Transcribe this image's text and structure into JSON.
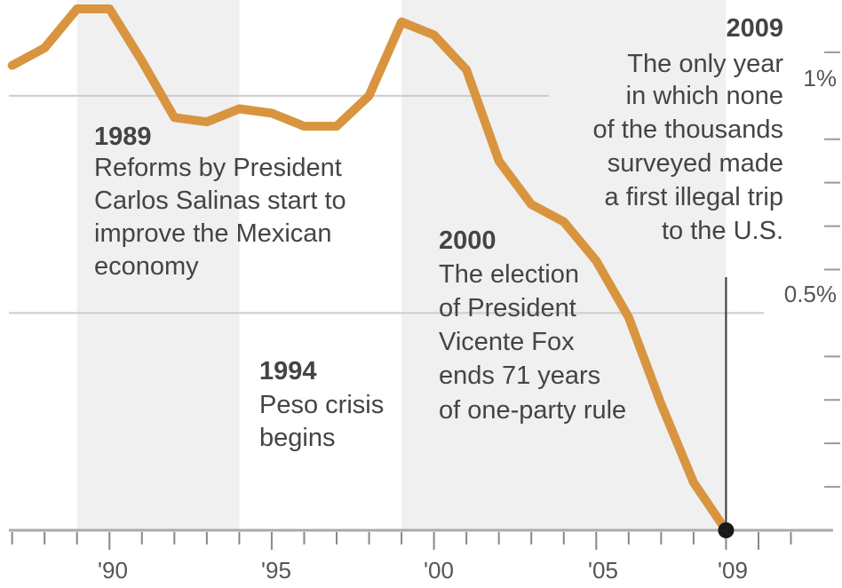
{
  "chart_data": {
    "type": "line",
    "x_tick_labels": [
      "'90",
      "'95",
      "'00",
      "'05",
      "'09"
    ],
    "y_tick_labels": [
      "1%",
      "0.5%"
    ],
    "ylim": [
      0,
      1.2
    ],
    "xlim": [
      1986.9,
      2012.3
    ],
    "grid": "horizontal",
    "line_color": "#d99440",
    "shading_color": "#f0f0f0",
    "shaded_periods": [
      [
        1989,
        1994
      ],
      [
        1999,
        2009
      ]
    ],
    "series": [
      {
        "x": [
          1987,
          1988,
          1989,
          1990,
          1991,
          1992,
          1993,
          1994,
          1995,
          1996,
          1997,
          1998,
          1999,
          2000,
          2001,
          2002,
          2003,
          2004,
          2005,
          2006,
          2007,
          2008,
          2009
        ],
        "values": [
          1.07,
          1.11,
          1.2,
          1.2,
          1.08,
          0.95,
          0.94,
          0.97,
          0.96,
          0.93,
          0.93,
          1.0,
          1.17,
          1.14,
          1.06,
          0.85,
          0.75,
          0.71,
          0.62,
          0.49,
          0.29,
          0.11,
          0.0
        ]
      }
    ],
    "end_marker": {
      "x": 2009,
      "value": 0.0
    },
    "annotations": [
      {
        "year": "1989",
        "lines": [
          "Reforms by President",
          "Carlos Salinas start to",
          "improve the Mexican",
          "economy"
        ]
      },
      {
        "year": "1994",
        "lines": [
          "Peso crisis",
          "begins"
        ]
      },
      {
        "year": "2000",
        "lines": [
          "The election",
          "of President",
          "Vicente Fox",
          "ends 71 years",
          "of one-party rule"
        ]
      },
      {
        "year": "2009",
        "lines": [
          "The only year",
          "in which none",
          "of the thousands",
          "surveyed made",
          "a first illegal trip",
          "to the U.S."
        ]
      }
    ]
  }
}
